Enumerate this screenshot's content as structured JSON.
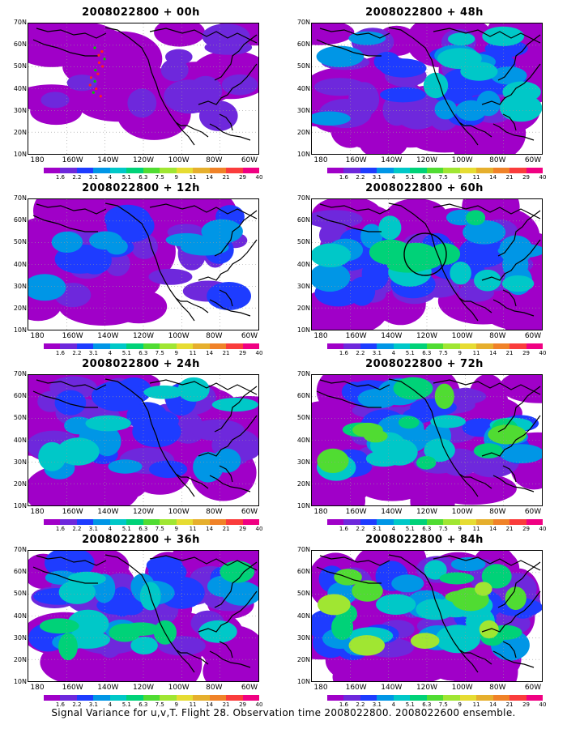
{
  "figure": {
    "caption": "Signal Variance for u,v,T. Flight 28. Observation time 2008022800. 2008022600 ensemble.",
    "lat_labels": [
      "70N",
      "60N",
      "50N",
      "40N",
      "30N",
      "20N",
      "10N"
    ],
    "lon_labels": [
      "180",
      "160W",
      "140W",
      "120W",
      "100W",
      "80W",
      "60W"
    ],
    "colorbar": {
      "labels": [
        "1.6",
        "2.2",
        "3.1",
        "4",
        "5.1",
        "6.3",
        "7.5",
        "9",
        "11",
        "14",
        "21",
        "29",
        "40"
      ],
      "colors": [
        "#ffffff",
        "#a000c8",
        "#6e28dc",
        "#1e3cff",
        "#0096e6",
        "#00c8c8",
        "#00d278",
        "#50dc32",
        "#a0e632",
        "#e6dc32",
        "#e6af2d",
        "#f08228",
        "#fa3c3c",
        "#f00082"
      ]
    },
    "panels": [
      {
        "title": "2008022800 + 00h"
      },
      {
        "title": "2008022800 + 48h"
      },
      {
        "title": "2008022800 + 12h"
      },
      {
        "title": "2008022800 + 60h"
      },
      {
        "title": "2008022800 + 24h"
      },
      {
        "title": "2008022800 + 72h"
      },
      {
        "title": "2008022800 + 36h"
      },
      {
        "title": "2008022800 + 84h"
      }
    ]
  }
}
